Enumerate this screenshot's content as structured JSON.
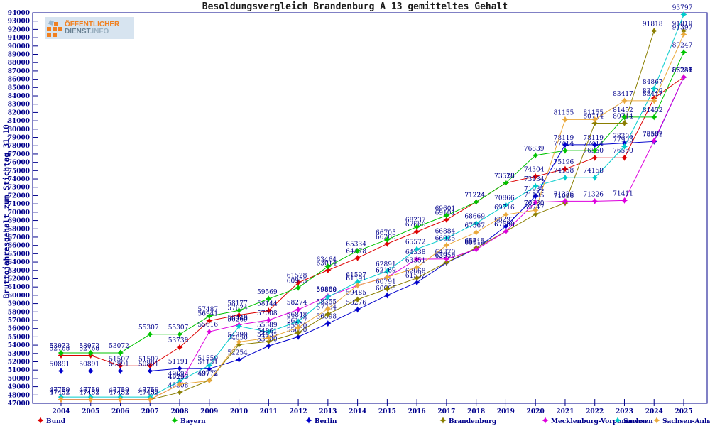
{
  "page_title": "Besoldungsvergleich Brandenburg A 13 gemitteltes Gehalt",
  "logo": {
    "top": "ÖFFENTLICHER",
    "bottom_a": "DIENST",
    "bottom_b": ".INFO"
  },
  "chart_data": {
    "type": "line",
    "title": "Besoldungsvergleich Brandenburg A 13 gemitteltes Gehalt",
    "ylabel": "Bruttojahresgehalt zum Stichtag 31.10.",
    "xlabel": "",
    "ylim": [
      47000,
      94000
    ],
    "ytick_step": 1000,
    "grid": false,
    "legend_position": "bottom",
    "point_labels": true,
    "axis_color": "#00008b",
    "label_color": "#00008b",
    "categories": [
      "2004",
      "2005",
      "2006",
      "2007",
      "2008",
      "2009",
      "2010",
      "2011",
      "2012",
      "2013",
      "2014",
      "2015",
      "2016",
      "2017",
      "2018",
      "2019",
      "2020",
      "2021",
      "2022",
      "2023",
      "2024",
      "2025"
    ],
    "series": [
      {
        "name": "Bund",
        "color": "#dd0000",
        "values": [
          52768,
          52768,
          51507,
          51507,
          53738,
          56941,
          57624,
          58144,
          61528,
          63014,
          64478,
          66203,
          67660,
          69101,
          71224,
          73518,
          74304,
          75196,
          76550,
          76550,
          83729,
          86258
        ]
      },
      {
        "name": "Bayern",
        "color": "#00c400",
        "values": [
          53072,
          53072,
          53072,
          55307,
          55307,
          57487,
          58177,
          59569,
          60905,
          63464,
          65334,
          66705,
          68237,
          69601,
          71224,
          73528,
          76839,
          77414,
          77414,
          81452,
          81452,
          89247
        ]
      },
      {
        "name": "Berlin",
        "color": "#0000cc",
        "values": [
          50891,
          50891,
          50891,
          50891,
          51191,
          51151,
          52254,
          53900,
          55000,
          56598,
          58276,
          60005,
          61532,
          63910,
          65613,
          68297,
          71934,
          78119,
          78119,
          78305,
          78505,
          86238
        ]
      },
      {
        "name": "Brandenburg",
        "color": "#8a7e00",
        "values": [
          47452,
          47452,
          47452,
          47452,
          48308,
          49772,
          54050,
          54435,
          55500,
          57734,
          59485,
          60791,
          62068,
          63958,
          65713,
          67686,
          69747,
          71096,
          80714,
          80714,
          91818,
          91818
        ]
      },
      {
        "name": "Mecklenburg-Vorpommern",
        "color": "#dd00dd",
        "values": [
          47452,
          47452,
          47452,
          47452,
          49293,
          55616,
          56449,
          57008,
          58274,
          59880,
          61191,
          62169,
          64338,
          64370,
          65513,
          67680,
          71195,
          71326,
          71326,
          71411,
          78597,
          86241
        ]
      },
      {
        "name": "Sachsen",
        "color": "#00cccc",
        "values": [
          47759,
          47759,
          47759,
          47759,
          49693,
          51559,
          56269,
          55589,
          56848,
          59808,
          61597,
          62891,
          65572,
          66884,
          68669,
          70866,
          73134,
          74158,
          74158,
          77905,
          84867,
          93797
        ]
      },
      {
        "name": "Sachsen-Anhalt",
        "color": "#eaa93c",
        "values": [
          47452,
          47452,
          47452,
          47452,
          49293,
          49712,
          54399,
          54861,
          56107,
          58355,
          61191,
          62169,
          63351,
          66025,
          67567,
          69716,
          70230,
          81155,
          81155,
          83417,
          83417,
          91397
        ]
      }
    ]
  }
}
